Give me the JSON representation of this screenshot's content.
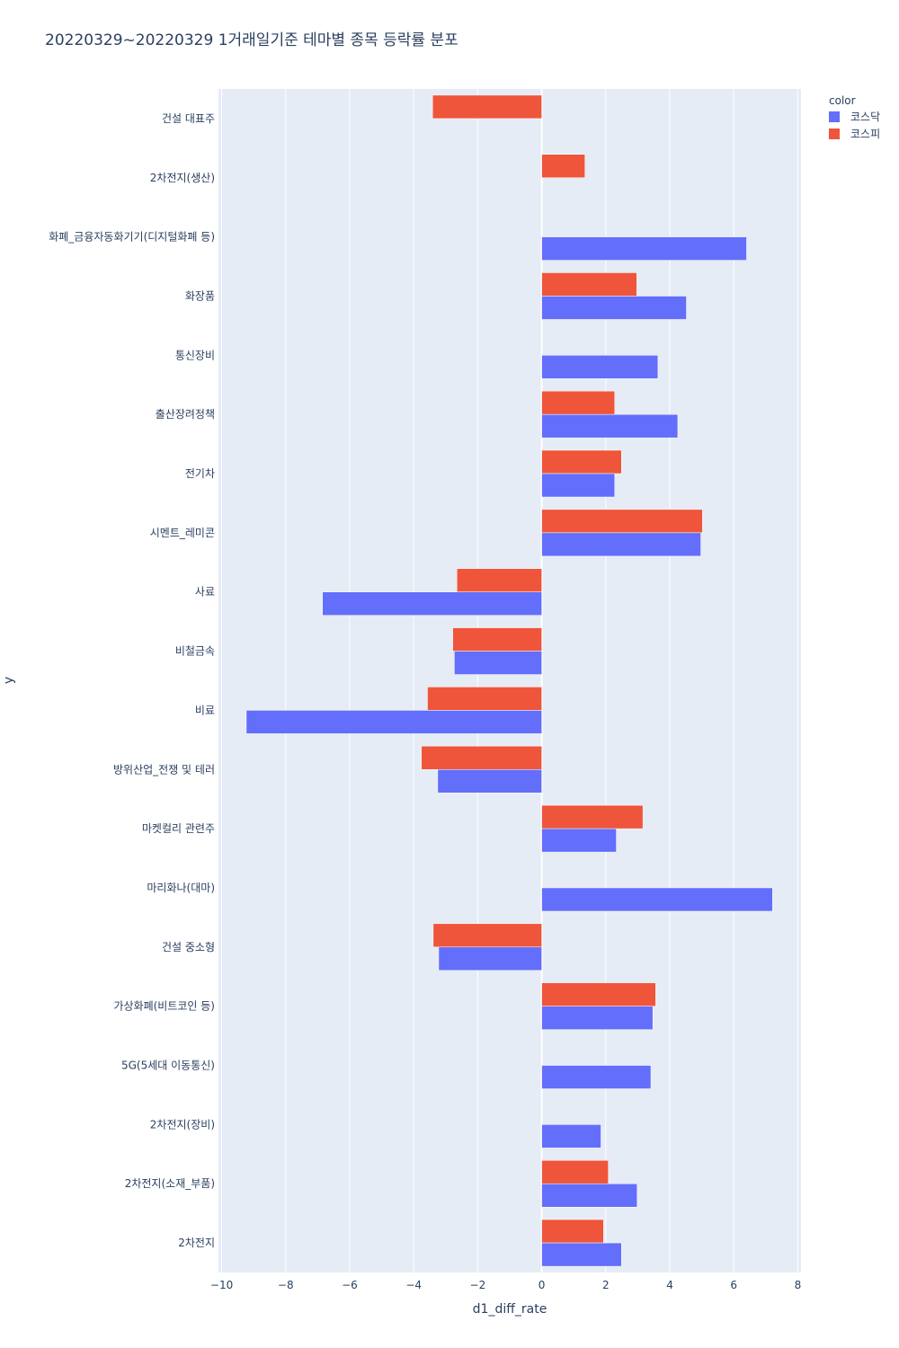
{
  "chart_data": {
    "type": "bar",
    "orientation": "horizontal",
    "barmode": "group",
    "title": "20220329~20220329 1거래일기준 테마별 종목 등락률 분포",
    "xlabel": "d1_diff_rate",
    "ylabel": "y",
    "xlim": [
      -10.1,
      8.1
    ],
    "xticks": [
      -10,
      -8,
      -6,
      -4,
      -2,
      0,
      2,
      4,
      6,
      8
    ],
    "xtick_labels": [
      "−10",
      "−8",
      "−6",
      "−4",
      "−2",
      "0",
      "2",
      "4",
      "6",
      "8"
    ],
    "grid": true,
    "legend": {
      "title": "color",
      "placement": "top-right"
    },
    "categories": [
      "건설 대표주",
      "2차전지(생산)",
      "화폐_금융자동화기기(디지털화폐 등)",
      "화장품",
      "통신장비",
      "출산장려정책",
      "전기차",
      "시멘트_레미콘",
      "사료",
      "비철금속",
      "비료",
      "방위산업_전쟁 및 테러",
      "마켓컬리 관련주",
      "마리화나(대마)",
      "건설 중소형",
      "가상화폐(비트코인 등)",
      "5G(5세대 이동통신)",
      "2차전지(장비)",
      "2차전지(소재_부품)",
      "2차전지"
    ],
    "series": [
      {
        "name": "코스닥",
        "color": "#636efa",
        "values": [
          null,
          null,
          6.4,
          4.52,
          3.63,
          4.25,
          2.28,
          4.97,
          -6.85,
          -2.73,
          -9.23,
          -3.25,
          2.33,
          7.21,
          -3.22,
          3.47,
          3.41,
          1.85,
          2.98,
          2.49
        ]
      },
      {
        "name": "코스피",
        "color": "#ef553b",
        "values": [
          -3.41,
          1.35,
          null,
          2.97,
          null,
          2.28,
          2.49,
          5.02,
          -2.65,
          -2.78,
          -3.57,
          -3.76,
          3.16,
          null,
          -3.39,
          3.56,
          null,
          null,
          2.08,
          1.93
        ]
      }
    ]
  }
}
